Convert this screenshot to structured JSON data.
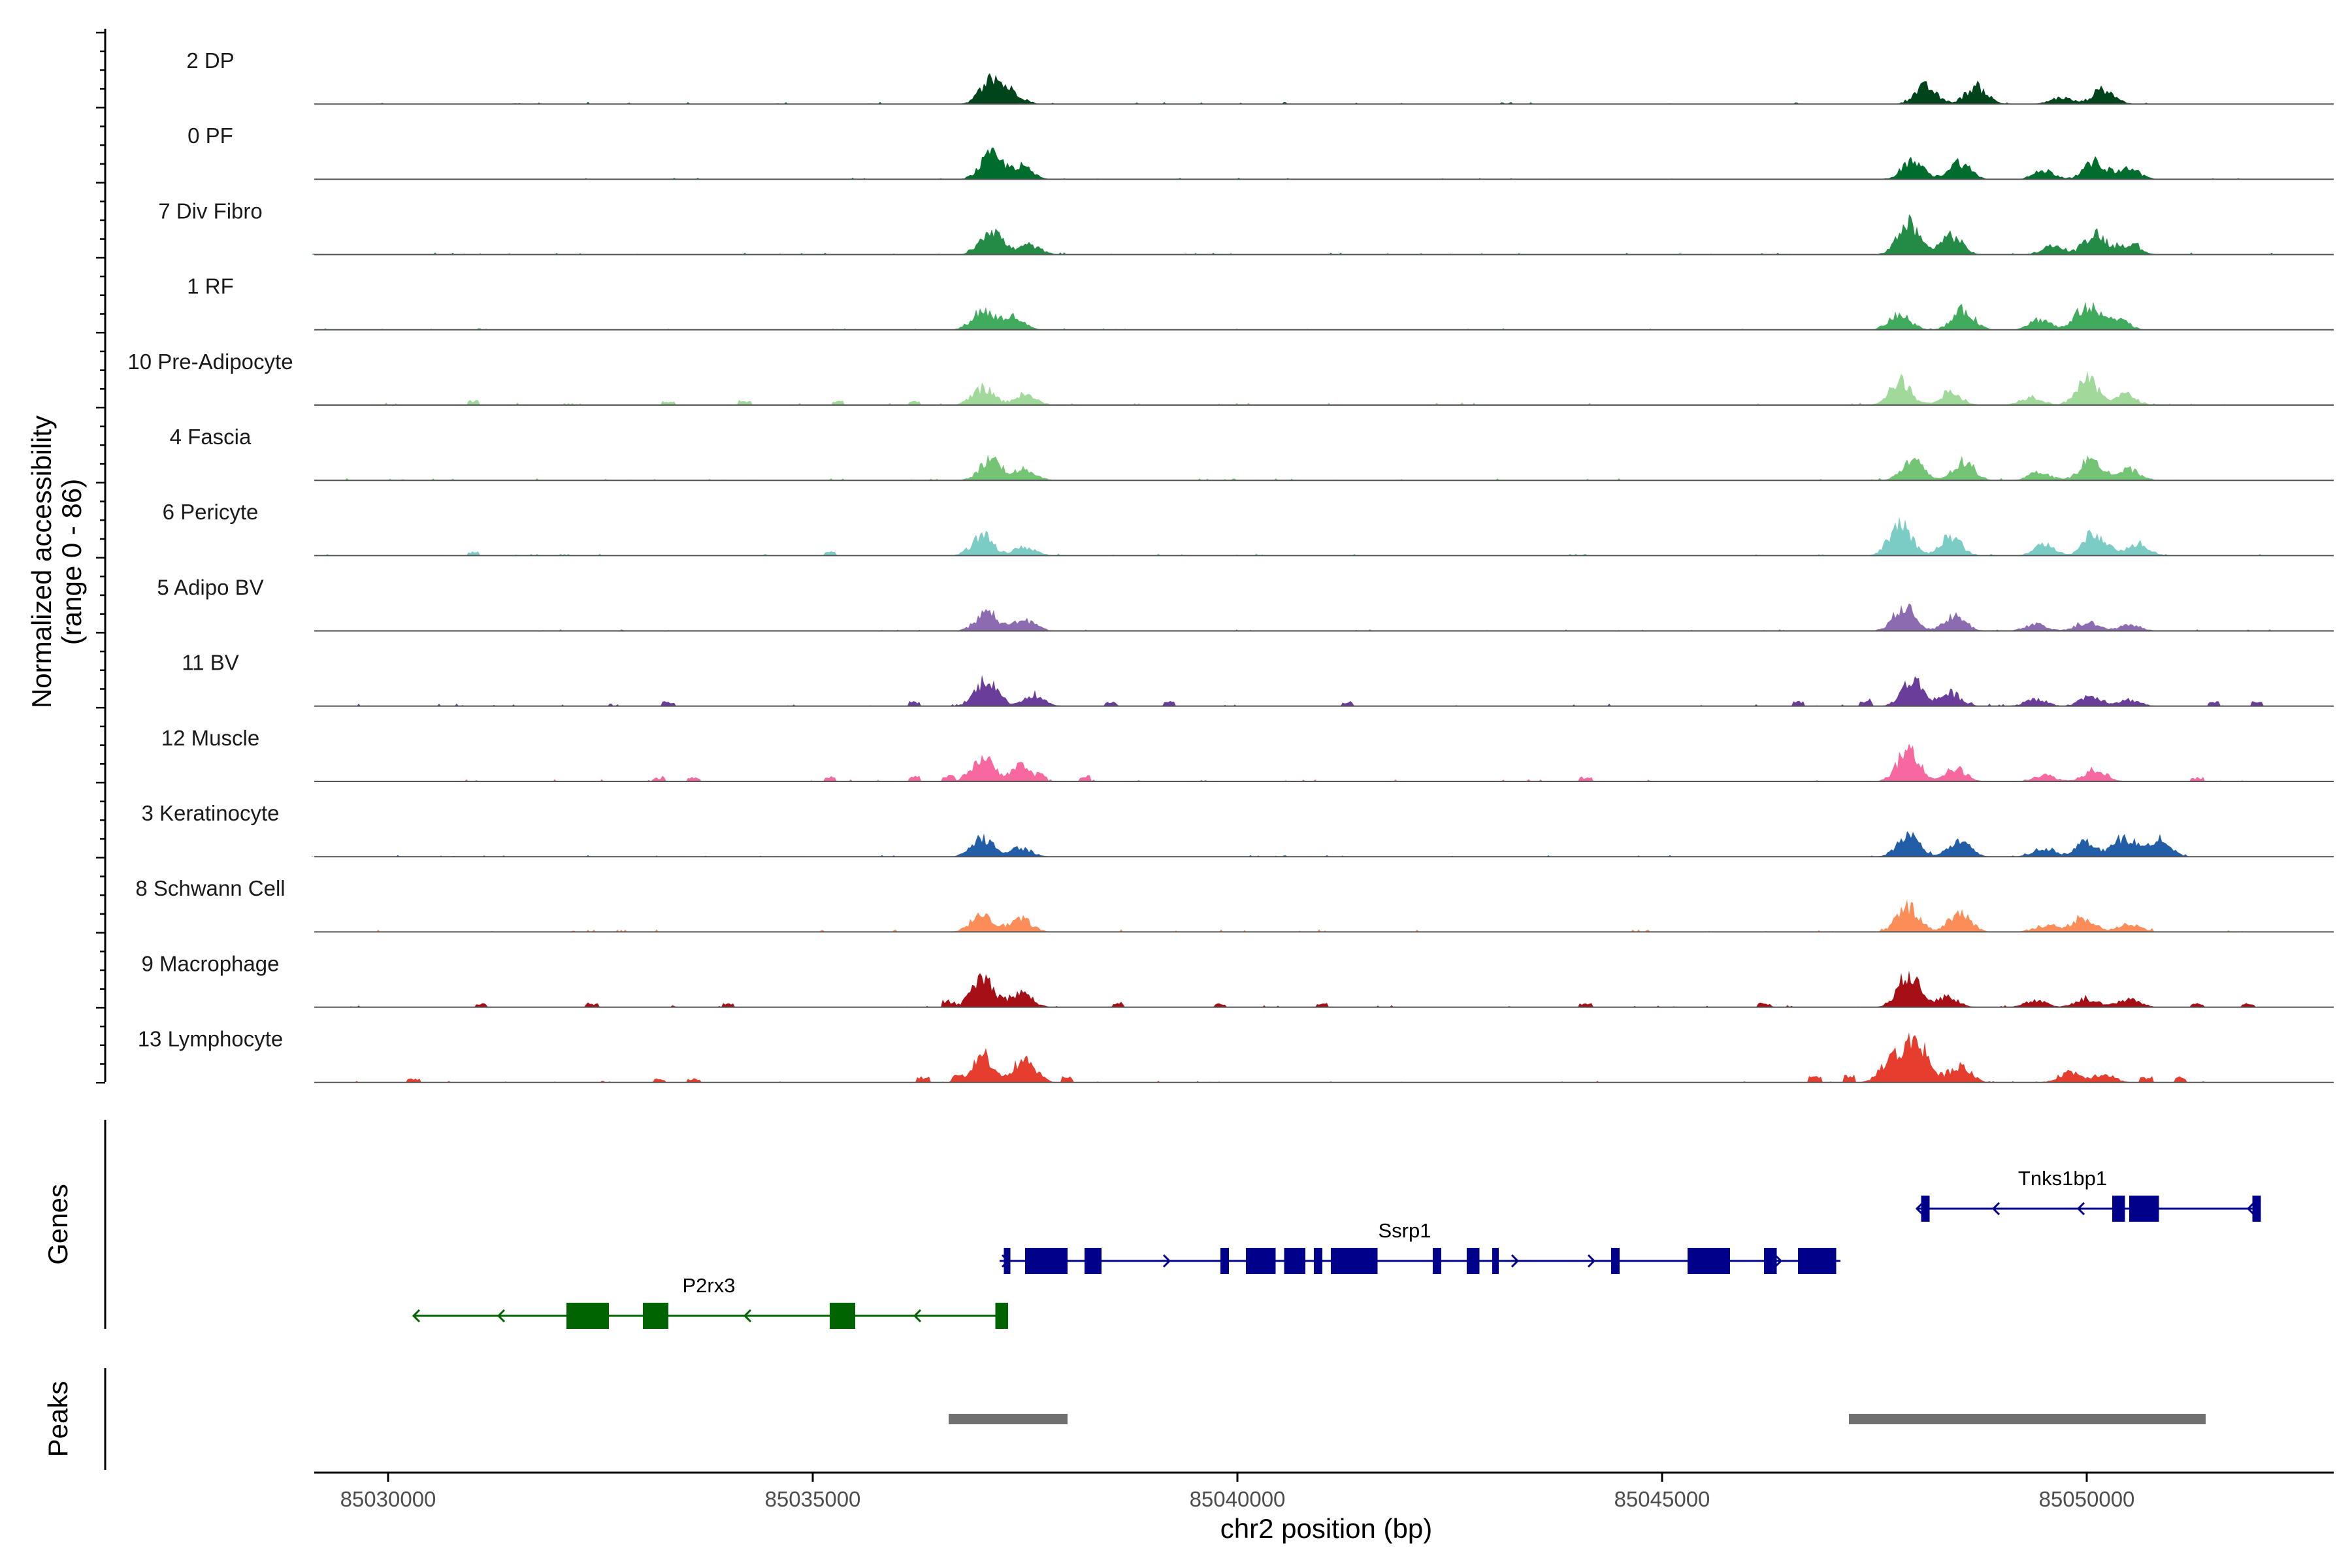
{
  "chart_data": {
    "type": "coverage-track",
    "chromosome": "chr2",
    "xlabel": "chr2 position (bp)",
    "ylabel_line1": "Normalized accessibility",
    "ylabel_line2": "(range 0 - 86)",
    "y_range": [
      0,
      86
    ],
    "xlim": [
      85029100,
      85053200
    ],
    "x_ticks": [
      {
        "value": 85030000,
        "label": "85030000"
      },
      {
        "value": 85035000,
        "label": "85035000"
      },
      {
        "value": 85040000,
        "label": "85040000"
      },
      {
        "value": 85045000,
        "label": "85045000"
      },
      {
        "value": 85050000,
        "label": "85050000"
      }
    ],
    "signal_start": 85029100,
    "signal_end": 85052200,
    "tracks": [
      {
        "label": "2 DP",
        "color": "#00441b",
        "peaks": [
          [
            85037100,
            22
          ],
          [
            85037350,
            10
          ],
          [
            85048100,
            16
          ],
          [
            85048700,
            16
          ],
          [
            85050200,
            14
          ],
          [
            85049700,
            6
          ]
        ],
        "noise": 2,
        "spikes": []
      },
      {
        "label": "0 PF",
        "color": "#006d2c",
        "peaks": [
          [
            85037100,
            22
          ],
          [
            85037450,
            12
          ],
          [
            85047950,
            16
          ],
          [
            85048500,
            16
          ],
          [
            85050100,
            16
          ],
          [
            85049500,
            8
          ],
          [
            85050500,
            10
          ]
        ],
        "noise": 1.5,
        "spikes": []
      },
      {
        "label": "7 Div Fibro",
        "color": "#238b45",
        "peaks": [
          [
            85037100,
            24
          ],
          [
            85037550,
            9
          ],
          [
            85047900,
            28
          ],
          [
            85048400,
            18
          ],
          [
            85050100,
            20
          ],
          [
            85049600,
            8
          ],
          [
            85050500,
            10
          ]
        ],
        "noise": 2,
        "spikes": []
      },
      {
        "label": "1 RF",
        "color": "#41ab5d",
        "peaks": [
          [
            85037000,
            18
          ],
          [
            85037350,
            12
          ],
          [
            85047800,
            14
          ],
          [
            85048550,
            18
          ],
          [
            85050000,
            22
          ],
          [
            85049450,
            10
          ],
          [
            85050350,
            12
          ]
        ],
        "noise": 1.5,
        "spikes": []
      },
      {
        "label": "10 Pre-Adipocyte",
        "color": "#a1d99b",
        "peaks": [
          [
            85037000,
            16
          ],
          [
            85037500,
            10
          ],
          [
            85047800,
            22
          ],
          [
            85048400,
            12
          ],
          [
            85050000,
            24
          ],
          [
            85049350,
            8
          ],
          [
            85050450,
            10
          ]
        ],
        "noise": 2.5,
        "spikes": [
          [
            85031000,
            5
          ],
          [
            85033300,
            4
          ],
          [
            85034200,
            5
          ],
          [
            85035300,
            4
          ],
          [
            85036200,
            4
          ]
        ]
      },
      {
        "label": "4 Fascia",
        "color": "#74c476",
        "peaks": [
          [
            85037100,
            20
          ],
          [
            85037500,
            10
          ],
          [
            85047950,
            18
          ],
          [
            85048550,
            16
          ],
          [
            85050050,
            20
          ],
          [
            85049450,
            8
          ],
          [
            85050500,
            10
          ]
        ],
        "noise": 2,
        "spikes": []
      },
      {
        "label": "6 Pericyte",
        "color": "#7bccc4",
        "peaks": [
          [
            85037000,
            18
          ],
          [
            85037500,
            8
          ],
          [
            85047800,
            30
          ],
          [
            85048400,
            18
          ],
          [
            85050100,
            22
          ],
          [
            85049500,
            10
          ],
          [
            85050600,
            12
          ]
        ],
        "noise": 2,
        "spikes": [
          [
            85031000,
            4
          ],
          [
            85035200,
            4
          ]
        ]
      },
      {
        "label": "5 Adipo BV",
        "color": "#8c6bb1",
        "peaks": [
          [
            85037050,
            18
          ],
          [
            85037500,
            10
          ],
          [
            85047850,
            22
          ],
          [
            85048450,
            14
          ],
          [
            85050000,
            8
          ],
          [
            85049400,
            6
          ],
          [
            85050500,
            6
          ]
        ],
        "noise": 1.5,
        "spikes": []
      },
      {
        "label": "11 BV",
        "color": "#6a3d9a",
        "peaks": [
          [
            85037050,
            26
          ],
          [
            85037600,
            10
          ],
          [
            85047950,
            24
          ],
          [
            85048400,
            12
          ],
          [
            85050050,
            10
          ],
          [
            85049400,
            6
          ],
          [
            85050500,
            6
          ]
        ],
        "noise": 2.5,
        "spikes": [
          [
            85033300,
            5
          ],
          [
            85036200,
            5
          ],
          [
            85038500,
            5
          ],
          [
            85039200,
            5
          ],
          [
            85041300,
            5
          ],
          [
            85046600,
            5
          ],
          [
            85047400,
            5
          ],
          [
            85051500,
            5
          ],
          [
            85052000,
            6
          ]
        ]
      },
      {
        "label": "12 Muscle",
        "color": "#f768a1",
        "peaks": [
          [
            85037000,
            22
          ],
          [
            85037450,
            14
          ],
          [
            85047900,
            30
          ],
          [
            85048450,
            12
          ],
          [
            85050100,
            12
          ],
          [
            85049500,
            6
          ]
        ],
        "noise": 2,
        "spikes": [
          [
            85033200,
            4
          ],
          [
            85033600,
            4
          ],
          [
            85035200,
            5
          ],
          [
            85036200,
            6
          ],
          [
            85036600,
            6
          ],
          [
            85037700,
            6
          ],
          [
            85038200,
            6
          ],
          [
            85044100,
            4
          ],
          [
            85051300,
            4
          ]
        ]
      },
      {
        "label": "3 Keratinocyte",
        "color": "#225ea8",
        "peaks": [
          [
            85037000,
            18
          ],
          [
            85037450,
            8
          ],
          [
            85047900,
            20
          ],
          [
            85048500,
            14
          ],
          [
            85050000,
            14
          ],
          [
            85049500,
            8
          ],
          [
            85050450,
            18
          ],
          [
            85050850,
            16
          ]
        ],
        "noise": 1.5,
        "spikes": []
      },
      {
        "label": "8 Schwann Cell",
        "color": "#fc8d59",
        "peaks": [
          [
            85037000,
            18
          ],
          [
            85037450,
            12
          ],
          [
            85047900,
            24
          ],
          [
            85048500,
            18
          ],
          [
            85049950,
            14
          ],
          [
            85049500,
            6
          ],
          [
            85050500,
            8
          ]
        ],
        "noise": 2.5,
        "spikes": []
      },
      {
        "label": "9 Macrophage",
        "color": "#a50f15",
        "peaks": [
          [
            85037000,
            28
          ],
          [
            85037450,
            14
          ],
          [
            85047900,
            30
          ],
          [
            85048350,
            10
          ],
          [
            85050000,
            8
          ],
          [
            85049400,
            6
          ],
          [
            85050500,
            8
          ]
        ],
        "noise": 2,
        "spikes": [
          [
            85031100,
            4
          ],
          [
            85032400,
            4
          ],
          [
            85034000,
            4
          ],
          [
            85036600,
            6
          ],
          [
            85038600,
            4
          ],
          [
            85039800,
            4
          ],
          [
            85041000,
            4
          ],
          [
            85044100,
            4
          ],
          [
            85046200,
            4
          ],
          [
            85051300,
            4
          ],
          [
            85051900,
            4
          ]
        ]
      },
      {
        "label": "13 Lymphocyte",
        "color": "#e53e2e",
        "peaks": [
          [
            85037000,
            26
          ],
          [
            85037500,
            22
          ],
          [
            85047700,
            22
          ],
          [
            85048000,
            40
          ],
          [
            85048500,
            16
          ],
          [
            85049800,
            10
          ],
          [
            85050200,
            8
          ]
        ],
        "noise": 1.5,
        "spikes": [
          [
            85030300,
            4
          ],
          [
            85033200,
            4
          ],
          [
            85033600,
            4
          ],
          [
            85036300,
            6
          ],
          [
            85036700,
            6
          ],
          [
            85038000,
            6
          ],
          [
            85046800,
            6
          ],
          [
            85047200,
            8
          ],
          [
            85050700,
            6
          ],
          [
            85051100,
            6
          ]
        ]
      }
    ],
    "genes_panel_label": "Genes",
    "peaks_panel_label": "Peaks",
    "genes": [
      {
        "name": "Tnks1bp1",
        "strand": "-",
        "color": "#00008b",
        "row": 0,
        "start": 85048000,
        "end": 85052000,
        "exons": [
          [
            85048050,
            85048150
          ],
          [
            85050300,
            85050450
          ],
          [
            85050500,
            85050850
          ],
          [
            85051950,
            85052050
          ]
        ],
        "arrows": [
          85048000,
          85048900,
          85049900,
          85051900
        ]
      },
      {
        "name": "Ssrp1",
        "strand": "+",
        "color": "#00008b",
        "row": 1,
        "start": 85037200,
        "end": 85047100,
        "exons": [
          [
            85037250,
            85037300
          ],
          [
            85037500,
            85038000
          ],
          [
            85038200,
            85038400
          ],
          [
            85039800,
            85039900
          ],
          [
            85040100,
            85040450
          ],
          [
            85040550,
            85040800
          ],
          [
            85040900,
            85041000
          ],
          [
            85041100,
            85041650
          ],
          [
            85042300,
            85042400
          ],
          [
            85042700,
            85042850
          ],
          [
            85043000,
            85043050
          ],
          [
            85044400,
            85044500
          ],
          [
            85045300,
            85045800
          ],
          [
            85046200,
            85046350
          ],
          [
            85046600,
            85047050
          ]
        ],
        "arrows": [
          85037300,
          85038000,
          85039200,
          85043300,
          85044200,
          85046400
        ]
      },
      {
        "name": "P2rx3",
        "strand": "-",
        "color": "#006400",
        "row": 2,
        "start": 85030300,
        "end": 85037300,
        "exons": [
          [
            85032100,
            85032600
          ],
          [
            85033000,
            85033300
          ],
          [
            85035200,
            85035500
          ],
          [
            85037150,
            85037300
          ]
        ],
        "arrows": [
          85030300,
          85031300,
          85034200,
          85036200
        ]
      }
    ],
    "peak_regions": [
      [
        85036600,
        85038000
      ],
      [
        85047200,
        85051400
      ]
    ],
    "peak_color": "#707070"
  }
}
